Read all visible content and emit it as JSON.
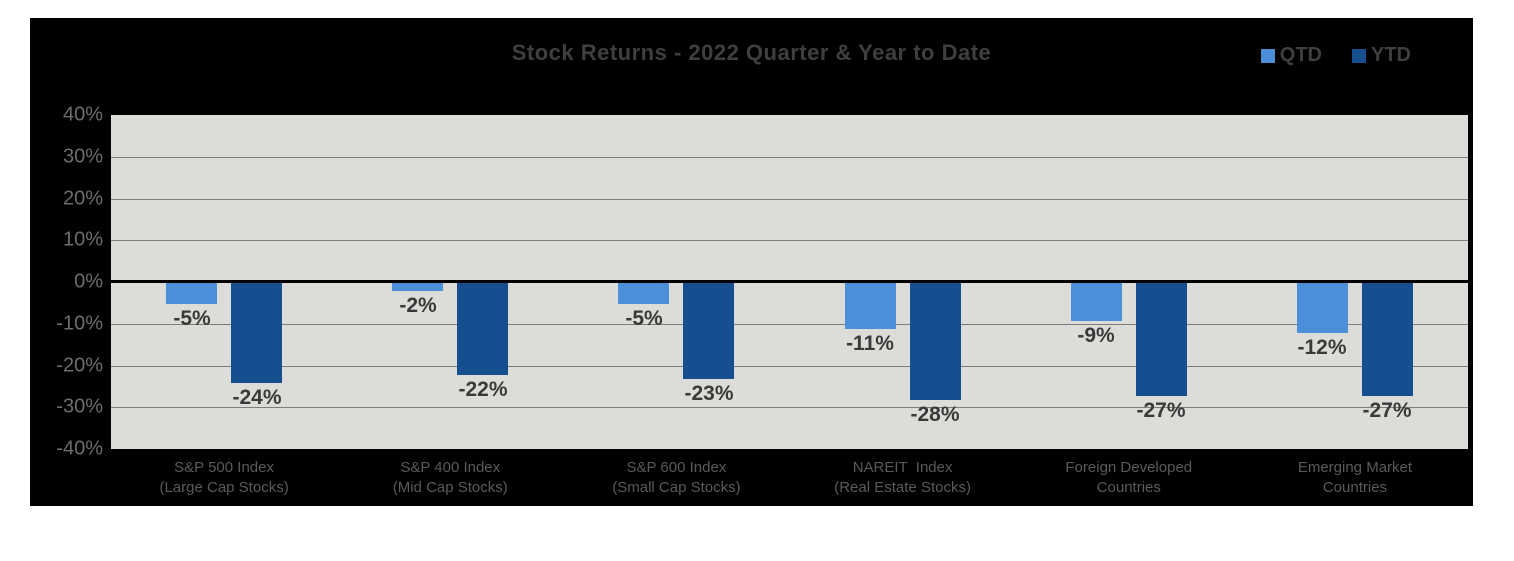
{
  "colors": {
    "frame_background": "#000000",
    "plot_background": "#dcdcd8",
    "gridline": "#7d7d7d",
    "zero_axis": "#000000",
    "title_text": "#3f3f3f",
    "value_label_text": "#3a3a3a",
    "y_tick_text": "#6d6d6d",
    "category_text": "#5a5a5a",
    "qtd_blue": "#4b8fd9",
    "ytd_blue": "#164e8f"
  },
  "chart_data": {
    "type": "bar",
    "title": "Stock Returns - 2022 Quarter & Year to Date",
    "xlabel": "",
    "ylabel": "",
    "ylim": [
      -40,
      40
    ],
    "ytick_step": 10,
    "grid": true,
    "legend_position": "top-right",
    "yticks": [
      {
        "value": 40,
        "label": "40%"
      },
      {
        "value": 30,
        "label": "30%"
      },
      {
        "value": 20,
        "label": "20%"
      },
      {
        "value": 10,
        "label": "10%"
      },
      {
        "value": 0,
        "label": "0%"
      },
      {
        "value": -10,
        "label": "-10%"
      },
      {
        "value": -20,
        "label": "-20%"
      },
      {
        "value": -30,
        "label": "-30%"
      },
      {
        "value": -40,
        "label": "-40%"
      }
    ],
    "categories": [
      {
        "line1": "S&P 500 Index",
        "line2": "(Large Cap Stocks)"
      },
      {
        "line1": "S&P 400 Index",
        "line2": "(Mid Cap Stocks)"
      },
      {
        "line1": "S&P 600 Index",
        "line2": "(Small Cap Stocks)"
      },
      {
        "line1": "NAREIT  Index",
        "line2": "(Real Estate Stocks)"
      },
      {
        "line1": "Foreign Developed",
        "line2": "Countries"
      },
      {
        "line1": "Emerging Market",
        "line2": "Countries"
      }
    ],
    "series": [
      {
        "name": "QTD",
        "color": "#4b8fd9",
        "values": [
          -5,
          -2,
          -5,
          -11,
          -9,
          -12
        ],
        "labels": [
          "-5%",
          "-2%",
          "-5%",
          "-11%",
          "-9%",
          "-12%"
        ]
      },
      {
        "name": "YTD",
        "color": "#164e8f",
        "values": [
          -24,
          -22,
          -23,
          -28,
          -27,
          -27
        ],
        "labels": [
          "-24%",
          "-22%",
          "-23%",
          "-28%",
          "-27%",
          "-27%"
        ]
      }
    ]
  }
}
